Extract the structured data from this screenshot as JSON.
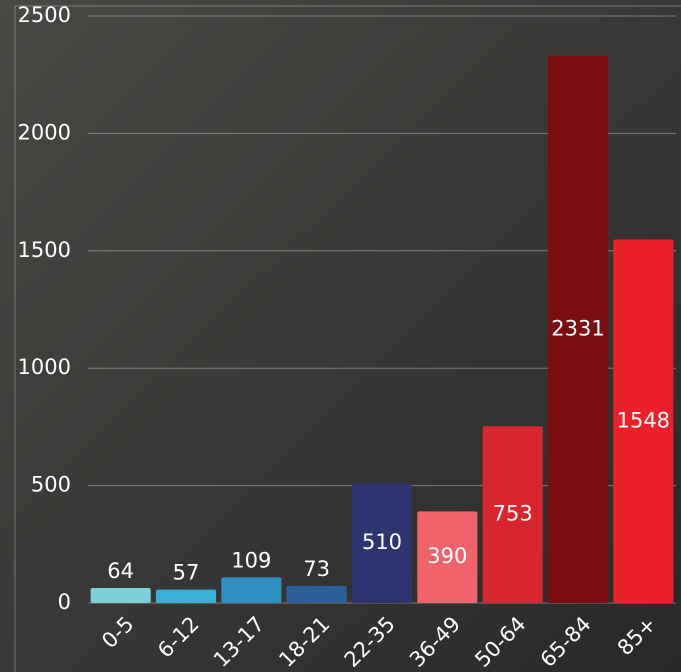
{
  "chart_data": {
    "type": "bar",
    "categories": [
      "0-5",
      "6-12",
      "13-17",
      "18-21",
      "22-35",
      "36-49",
      "50-64",
      "65-84",
      "85+"
    ],
    "values": [
      64,
      57,
      109,
      73,
      510,
      390,
      753,
      2331,
      1548
    ],
    "colors": [
      "#7ecfd9",
      "#3bb0d6",
      "#2e8fc0",
      "#2c5f99",
      "#2e3470",
      "#f0636b",
      "#d9252f",
      "#7c0e13",
      "#ec1f2b"
    ],
    "ylim": [
      0,
      2500
    ],
    "yticks": [
      0,
      500,
      1000,
      1500,
      2000,
      2500
    ],
    "grid": true
  }
}
